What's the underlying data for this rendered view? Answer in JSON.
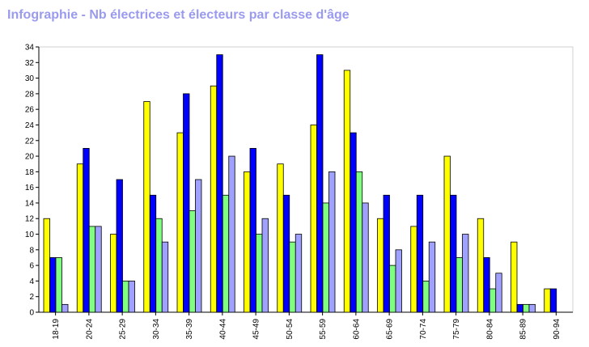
{
  "chart_data": {
    "type": "bar",
    "title": "Infographie - Nb électrices et électeurs par classe d'âge",
    "categories": [
      "18-19",
      "20-24",
      "25-29",
      "30-34",
      "35-39",
      "40-44",
      "45-49",
      "50-54",
      "55-59",
      "60-64",
      "65-69",
      "70-74",
      "75-79",
      "80-84",
      "85-89",
      "90-94"
    ],
    "series": [
      {
        "values": [
          12,
          19,
          10,
          27,
          23,
          29,
          18,
          19,
          24,
          31,
          12,
          11,
          20,
          12,
          9,
          3
        ],
        "color": "#ffff00"
      },
      {
        "values": [
          7,
          21,
          17,
          15,
          28,
          33,
          21,
          15,
          33,
          23,
          15,
          15,
          15,
          7,
          1,
          3
        ],
        "color": "#0000ff"
      },
      {
        "values": [
          7,
          11,
          4,
          12,
          13,
          15,
          10,
          9,
          14,
          18,
          6,
          4,
          7,
          3,
          1,
          0
        ],
        "color": "#80ff80"
      },
      {
        "values": [
          1,
          11,
          4,
          9,
          17,
          20,
          12,
          10,
          18,
          14,
          8,
          9,
          10,
          5,
          1,
          0
        ],
        "color": "#a0a0ff"
      }
    ],
    "yticks": [
      0,
      2,
      4,
      6,
      8,
      10,
      12,
      14,
      16,
      18,
      20,
      22,
      24,
      26,
      28,
      30,
      32,
      34
    ],
    "ylim": [
      0,
      34
    ],
    "grid": false,
    "legend": "none"
  }
}
